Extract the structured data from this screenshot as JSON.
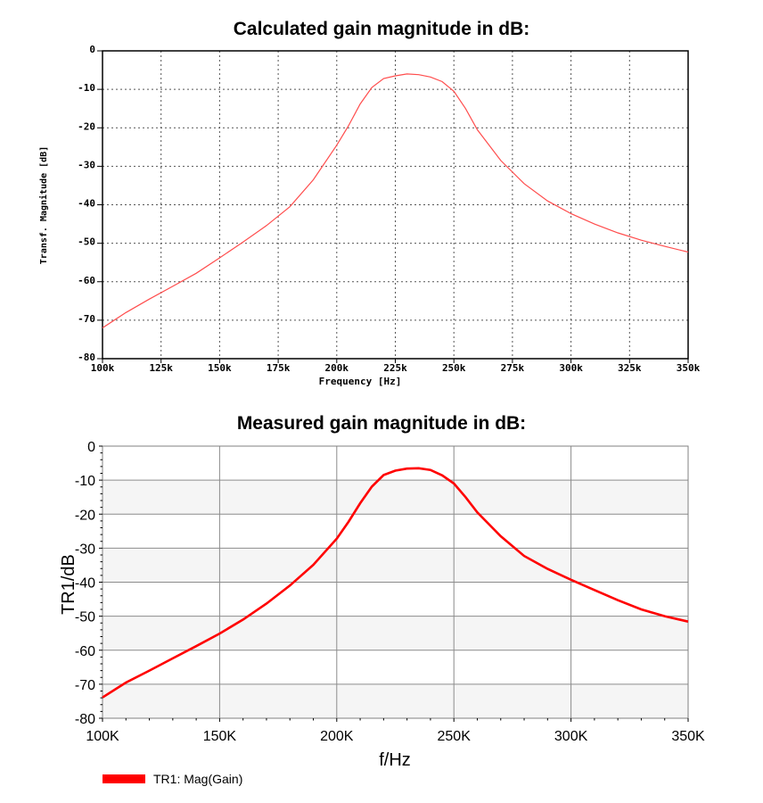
{
  "chart_data": [
    {
      "type": "line",
      "title": "Calculated gain magnitude in dB:",
      "xlabel": "Frequency [Hz]",
      "ylabel": "Transf. Magnitude [dB]",
      "xlim": [
        100,
        350
      ],
      "ylim": [
        -80,
        0
      ],
      "x_unit": "kHz",
      "grid": true,
      "grid_style": "dotted",
      "x_ticks": [
        "100k",
        "125k",
        "150k",
        "175k",
        "200k",
        "225k",
        "250k",
        "275k",
        "300k",
        "325k",
        "350k"
      ],
      "y_ticks": [
        "0",
        "-10",
        "-20",
        "-30",
        "-40",
        "-50",
        "-60",
        "-70",
        "-80"
      ],
      "color": "#ff4d4d",
      "series": [
        {
          "x": [
            100,
            110,
            120,
            130,
            140,
            150,
            160,
            170,
            180,
            190,
            200,
            205,
            210,
            215,
            220,
            225,
            230,
            235,
            240,
            245,
            250,
            255,
            260,
            270,
            280,
            290,
            300,
            310,
            320,
            330,
            340,
            350
          ],
          "values": [
            -72,
            -68,
            -64.5,
            -61.2,
            -57.8,
            -53.8,
            -49.7,
            -45.4,
            -40.5,
            -33.5,
            -24.5,
            -19.5,
            -13.8,
            -9.5,
            -7.2,
            -6.5,
            -6.0,
            -6.2,
            -6.8,
            -8.0,
            -10.5,
            -15,
            -20.5,
            -28.5,
            -34.5,
            -39.0,
            -42.3,
            -45.0,
            -47.3,
            -49.2,
            -50.8,
            -52.3
          ]
        }
      ]
    },
    {
      "type": "line",
      "title": "Measured gain magnitude in dB:",
      "xlabel": "f/Hz",
      "ylabel": "TR1/dB",
      "xlim": [
        100,
        350
      ],
      "ylim": [
        -80,
        0
      ],
      "x_unit": "kHz",
      "grid": true,
      "grid_style": "solid",
      "band_shading": true,
      "x_ticks": [
        "100K",
        "150K",
        "200K",
        "250K",
        "300K",
        "350K"
      ],
      "y_ticks": [
        "0",
        "-10",
        "-20",
        "-30",
        "-40",
        "-50",
        "-60",
        "-70",
        "-80"
      ],
      "color": "#ff0000",
      "legend_position": "bottom-left",
      "legend": "TR1: Mag(Gain)",
      "series": [
        {
          "name": "TR1: Mag(Gain)",
          "x": [
            100,
            110,
            120,
            130,
            140,
            150,
            160,
            170,
            180,
            190,
            200,
            205,
            210,
            215,
            220,
            225,
            230,
            235,
            240,
            245,
            250,
            255,
            260,
            270,
            280,
            290,
            300,
            310,
            320,
            330,
            340,
            350
          ],
          "values": [
            -73.9,
            -69.5,
            -66.0,
            -62.4,
            -58.8,
            -55.1,
            -51.0,
            -46.3,
            -41.0,
            -34.9,
            -27.2,
            -22.3,
            -16.8,
            -11.9,
            -8.5,
            -7.2,
            -6.6,
            -6.5,
            -7.0,
            -8.6,
            -11.0,
            -15.0,
            -19.5,
            -26.5,
            -32.3,
            -36.1,
            -39.3,
            -42.3,
            -45.3,
            -48.0,
            -50.0,
            -51.6
          ]
        }
      ]
    }
  ]
}
